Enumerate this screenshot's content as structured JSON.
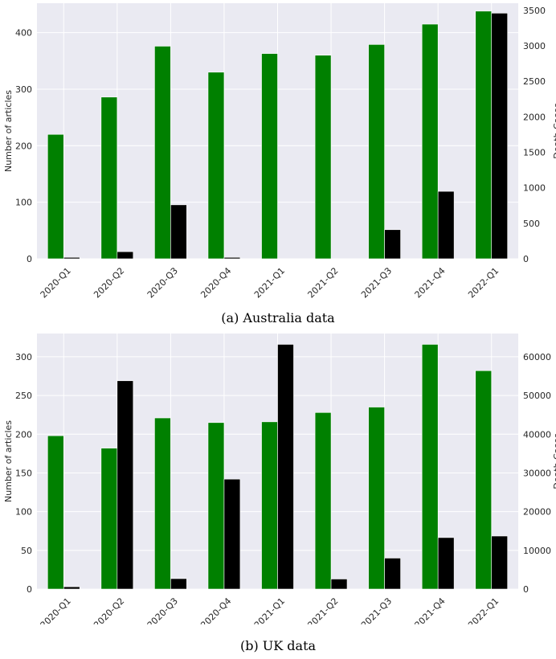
{
  "chart_data": [
    {
      "type": "bar",
      "caption": "(a) Australia data",
      "categories": [
        "2020-Q1",
        "2020-Q2",
        "2020-Q3",
        "2020-Q4",
        "2021-Q1",
        "2021-Q2",
        "2021-Q3",
        "2021-Q4",
        "2022-Q1"
      ],
      "series": [
        {
          "axis": "left",
          "color": "#008000",
          "values": [
            220,
            286,
            376,
            330,
            363,
            360,
            379,
            415,
            438
          ]
        },
        {
          "axis": "right",
          "color": "#000000",
          "values": [
            20,
            100,
            760,
            20,
            0,
            0,
            410,
            950,
            3460
          ]
        }
      ],
      "ylabel_left": "Number of articles",
      "ylabel_right": "Death Cases",
      "ylim_left": [
        0,
        452
      ],
      "ylim_right": [
        0,
        3600
      ],
      "yticks_left": [
        0,
        100,
        200,
        300,
        400
      ],
      "yticks_right": [
        0,
        500,
        1000,
        1500,
        2000,
        2500,
        3000,
        3500
      ],
      "grid": true
    },
    {
      "type": "bar",
      "caption": "(b) UK data",
      "categories": [
        "2020-Q1",
        "2020-Q2",
        "2020-Q3",
        "2020-Q4",
        "2021-Q1",
        "2021-Q2",
        "2021-Q3",
        "2021-Q4",
        "2022-Q1"
      ],
      "series": [
        {
          "axis": "left",
          "color": "#008000",
          "values": [
            198,
            182,
            221,
            215,
            216,
            228,
            235,
            316,
            282
          ]
        },
        {
          "axis": "right",
          "color": "#000000",
          "values": [
            600,
            53800,
            2700,
            28400,
            63200,
            2600,
            8000,
            13300,
            13700
          ]
        }
      ],
      "ylabel_left": "Number of articles",
      "ylabel_right": "Death Cases",
      "ylim_left": [
        0,
        330
      ],
      "ylim_right": [
        0,
        66000
      ],
      "yticks_left": [
        0,
        50,
        100,
        150,
        200,
        250,
        300
      ],
      "yticks_right": [
        0,
        10000,
        20000,
        30000,
        40000,
        50000,
        60000
      ],
      "grid": true
    }
  ]
}
